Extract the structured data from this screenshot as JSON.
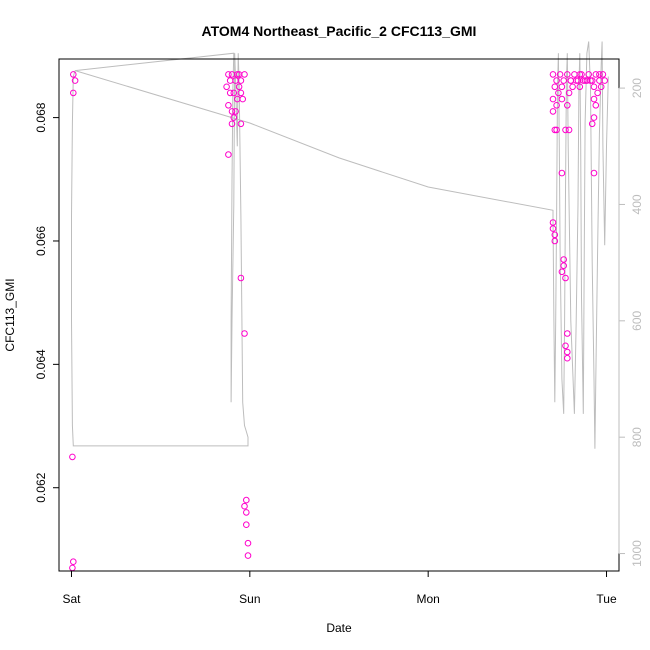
{
  "chart_data": {
    "type": "scatter",
    "title": "ATOM4 Northeast_Pacific_2 CFC113_GMI",
    "xlabel": "Date",
    "ylabel": "CFC113_GMI",
    "x_ticks": [
      {
        "day": 0,
        "label": "Sat"
      },
      {
        "day": 1,
        "label": "Sun"
      },
      {
        "day": 2,
        "label": "Mon"
      },
      {
        "day": 3,
        "label": "Tue"
      }
    ],
    "xlim": [
      -0.07,
      3.07
    ],
    "ylim": [
      0.06065,
      0.06895
    ],
    "y_ticks": [
      0.062,
      0.064,
      0.066,
      0.068
    ],
    "y_tick_labels": [
      "0.062",
      "0.064",
      "0.066",
      "0.068"
    ],
    "right_axis": {
      "lim": [
        1030,
        150
      ],
      "ticks": [
        200,
        400,
        600,
        800,
        1000
      ],
      "tick_labels": [
        "200",
        "400",
        "600",
        "800",
        "1000"
      ],
      "color": "#bdbdbd"
    },
    "series": [
      {
        "color": "#ff00cc",
        "marker": "open-circle",
        "points": [
          [
            0.01,
            0.0687
          ],
          [
            0.02,
            0.0686
          ],
          [
            0.01,
            0.0684
          ],
          [
            0.005,
            0.0625
          ],
          [
            0.01,
            0.0608
          ],
          [
            0.005,
            0.0607
          ],
          [
            0.88,
            0.0687
          ],
          [
            0.89,
            0.0686
          ],
          [
            0.9,
            0.0687
          ],
          [
            0.92,
            0.0686
          ],
          [
            0.93,
            0.0687
          ],
          [
            0.94,
            0.0685
          ],
          [
            0.87,
            0.0685
          ],
          [
            0.89,
            0.0684
          ],
          [
            0.91,
            0.0684
          ],
          [
            0.93,
            0.0683
          ],
          [
            0.95,
            0.0684
          ],
          [
            0.96,
            0.0683
          ],
          [
            0.88,
            0.0682
          ],
          [
            0.9,
            0.0681
          ],
          [
            0.92,
            0.0681
          ],
          [
            0.91,
            0.068
          ],
          [
            0.95,
            0.0679
          ],
          [
            0.9,
            0.0679
          ],
          [
            0.88,
            0.0674
          ],
          [
            0.95,
            0.0654
          ],
          [
            0.97,
            0.0645
          ],
          [
            0.98,
            0.0618
          ],
          [
            0.97,
            0.0617
          ],
          [
            0.98,
            0.0616
          ],
          [
            0.98,
            0.0614
          ],
          [
            0.99,
            0.0611
          ],
          [
            0.99,
            0.0609
          ],
          [
            0.94,
            0.0687
          ],
          [
            0.95,
            0.0686
          ],
          [
            0.97,
            0.0687
          ],
          [
            2.7,
            0.0687
          ],
          [
            2.72,
            0.0686
          ],
          [
            2.74,
            0.0687
          ],
          [
            2.76,
            0.0686
          ],
          [
            2.78,
            0.0687
          ],
          [
            2.8,
            0.0686
          ],
          [
            2.82,
            0.0687
          ],
          [
            2.84,
            0.0686
          ],
          [
            2.86,
            0.0687
          ],
          [
            2.88,
            0.0686
          ],
          [
            2.9,
            0.0687
          ],
          [
            2.92,
            0.0686
          ],
          [
            2.94,
            0.0687
          ],
          [
            2.96,
            0.0686
          ],
          [
            2.98,
            0.0687
          ],
          [
            2.71,
            0.0685
          ],
          [
            2.73,
            0.0684
          ],
          [
            2.75,
            0.0685
          ],
          [
            2.79,
            0.0684
          ],
          [
            2.81,
            0.0685
          ],
          [
            2.83,
            0.0686
          ],
          [
            2.85,
            0.0685
          ],
          [
            2.87,
            0.0686
          ],
          [
            2.93,
            0.0685
          ],
          [
            2.95,
            0.0684
          ],
          [
            2.97,
            0.0685
          ],
          [
            2.7,
            0.0683
          ],
          [
            2.72,
            0.0682
          ],
          [
            2.75,
            0.0683
          ],
          [
            2.78,
            0.0682
          ],
          [
            2.93,
            0.0683
          ],
          [
            2.94,
            0.0682
          ],
          [
            2.7,
            0.0681
          ],
          [
            2.93,
            0.068
          ],
          [
            2.71,
            0.0678
          ],
          [
            2.72,
            0.0678
          ],
          [
            2.77,
            0.0678
          ],
          [
            2.79,
            0.0678
          ],
          [
            2.92,
            0.0679
          ],
          [
            2.75,
            0.0671
          ],
          [
            2.93,
            0.0671
          ],
          [
            2.7,
            0.0663
          ],
          [
            2.7,
            0.0662
          ],
          [
            2.71,
            0.0661
          ],
          [
            2.71,
            0.066
          ],
          [
            2.76,
            0.0657
          ],
          [
            2.76,
            0.0656
          ],
          [
            2.75,
            0.0655
          ],
          [
            2.77,
            0.0654
          ],
          [
            2.78,
            0.0645
          ],
          [
            2.77,
            0.0643
          ],
          [
            2.78,
            0.0642
          ],
          [
            2.78,
            0.0641
          ],
          [
            2.89,
            0.0686
          ],
          [
            2.91,
            0.0686
          ],
          [
            2.99,
            0.0686
          ],
          [
            2.96,
            0.0687
          ],
          [
            2.8,
            0.0686
          ],
          [
            2.85,
            0.0687
          ]
        ]
      }
    ],
    "pressure_line": {
      "color": "#bdbdbd",
      "points": [
        [
          0.02,
          170
        ],
        [
          0.01,
          180
        ],
        [
          0.005,
          260
        ],
        [
          0,
          420
        ],
        [
          0,
          600
        ],
        [
          0.005,
          780
        ],
        [
          0.01,
          815
        ],
        [
          0.5,
          815
        ],
        [
          0.99,
          815
        ],
        [
          0.99,
          800
        ],
        [
          0.98,
          790
        ],
        [
          0.97,
          780
        ],
        [
          0.96,
          740
        ],
        [
          0.95,
          420
        ],
        [
          0.94,
          190
        ],
        [
          0.935,
          140
        ],
        [
          0.93,
          300
        ],
        [
          0.92,
          190
        ],
        [
          0.915,
          140
        ],
        [
          0.91,
          400
        ],
        [
          0.9,
          600
        ],
        [
          0.895,
          740
        ],
        [
          0.895,
          600
        ],
        [
          0.9,
          360
        ],
        [
          0.905,
          200
        ],
        [
          0.91,
          140
        ],
        [
          0.02,
          170
        ],
        [
          1.0,
          260
        ],
        [
          1.5,
          320
        ],
        [
          2.0,
          370
        ],
        [
          2.7,
          410
        ],
        [
          2.7,
          420
        ],
        [
          2.705,
          600
        ],
        [
          2.71,
          740
        ],
        [
          2.715,
          600
        ],
        [
          2.72,
          420
        ],
        [
          2.725,
          200
        ],
        [
          2.73,
          140
        ],
        [
          2.735,
          300
        ],
        [
          2.74,
          480
        ],
        [
          2.75,
          700
        ],
        [
          2.76,
          760
        ],
        [
          2.765,
          600
        ],
        [
          2.77,
          380
        ],
        [
          2.775,
          190
        ],
        [
          2.78,
          140
        ],
        [
          2.785,
          300
        ],
        [
          2.8,
          600
        ],
        [
          2.82,
          760
        ],
        [
          2.83,
          600
        ],
        [
          2.84,
          400
        ],
        [
          2.845,
          200
        ],
        [
          2.85,
          140
        ],
        [
          2.855,
          300
        ],
        [
          2.86,
          560
        ],
        [
          2.87,
          760
        ],
        [
          2.875,
          500
        ],
        [
          2.88,
          260
        ],
        [
          2.89,
          140
        ],
        [
          2.9,
          120
        ],
        [
          2.91,
          200
        ],
        [
          2.92,
          500
        ],
        [
          2.93,
          700
        ],
        [
          2.935,
          820
        ],
        [
          2.94,
          700
        ],
        [
          2.95,
          480
        ],
        [
          2.96,
          280
        ],
        [
          2.97,
          160
        ],
        [
          2.975,
          120
        ],
        [
          2.98,
          300
        ],
        [
          2.99,
          470
        ],
        [
          3.0,
          300
        ],
        [
          3.01,
          180
        ]
      ]
    }
  }
}
